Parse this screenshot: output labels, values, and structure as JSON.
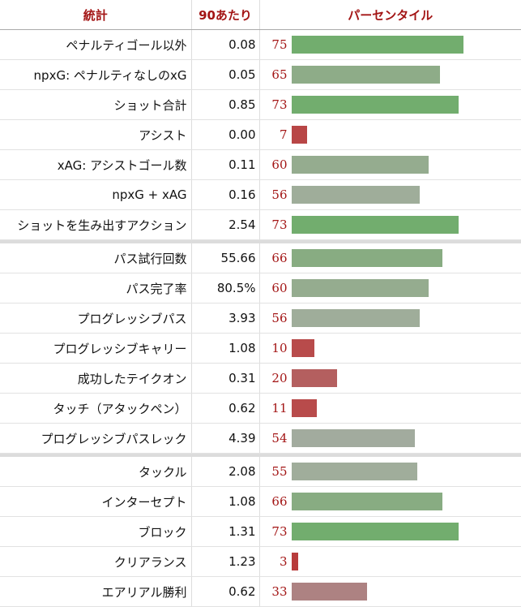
{
  "header": {
    "stat": "統計",
    "per90": "90あたり",
    "percentile": "パーセンタイル"
  },
  "colors": {
    "high": "#72ad6e",
    "mid": "#9aac94",
    "low": "#b84c4c"
  },
  "groups": [
    [
      {
        "stat": "ペナルティゴール以外",
        "value": "0.08",
        "pct": 75,
        "color": "#72ad6e"
      },
      {
        "stat": "npxG: ペナルティなしのxG",
        "value": "0.05",
        "pct": 65,
        "color": "#8eac88"
      },
      {
        "stat": "ショット合計",
        "value": "0.85",
        "pct": 73,
        "color": "#72ad6e"
      },
      {
        "stat": "アシスト",
        "value": "0.00",
        "pct": 7,
        "color": "#b84646"
      },
      {
        "stat": "xAG: アシストゴール数",
        "value": "0.11",
        "pct": 60,
        "color": "#95ac8f"
      },
      {
        "stat": "npxG + xAG",
        "value": "0.16",
        "pct": 56,
        "color": "#9fad9a"
      },
      {
        "stat": "ショットを生み出すアクション",
        "value": "2.54",
        "pct": 73,
        "color": "#72ad6e"
      }
    ],
    [
      {
        "stat": "パス試行回数",
        "value": "55.66",
        "pct": 66,
        "color": "#88ac82"
      },
      {
        "stat": "パス完了率",
        "value": "80.5%",
        "pct": 60,
        "color": "#95ac8f"
      },
      {
        "stat": "プログレッシブパス",
        "value": "3.93",
        "pct": 56,
        "color": "#9fad9a"
      },
      {
        "stat": "プログレッシブキャリー",
        "value": "1.08",
        "pct": 10,
        "color": "#b84b4b"
      },
      {
        "stat": "成功したテイクオン",
        "value": "0.31",
        "pct": 20,
        "color": "#b45f5f"
      },
      {
        "stat": "タッチ（アタックペン）",
        "value": "0.62",
        "pct": 11,
        "color": "#b84b4b"
      },
      {
        "stat": "プログレッシブパスレック",
        "value": "4.39",
        "pct": 54,
        "color": "#a2ab9e"
      }
    ],
    [
      {
        "stat": "タックル",
        "value": "2.08",
        "pct": 55,
        "color": "#a0ad9b"
      },
      {
        "stat": "インターセプト",
        "value": "1.08",
        "pct": 66,
        "color": "#88ac82"
      },
      {
        "stat": "ブロック",
        "value": "1.31",
        "pct": 73,
        "color": "#72ad6e"
      },
      {
        "stat": "クリアランス",
        "value": "1.23",
        "pct": 3,
        "color": "#b83c3c"
      },
      {
        "stat": "エアリアル勝利",
        "value": "0.62",
        "pct": 33,
        "color": "#ad8282"
      }
    ]
  ]
}
